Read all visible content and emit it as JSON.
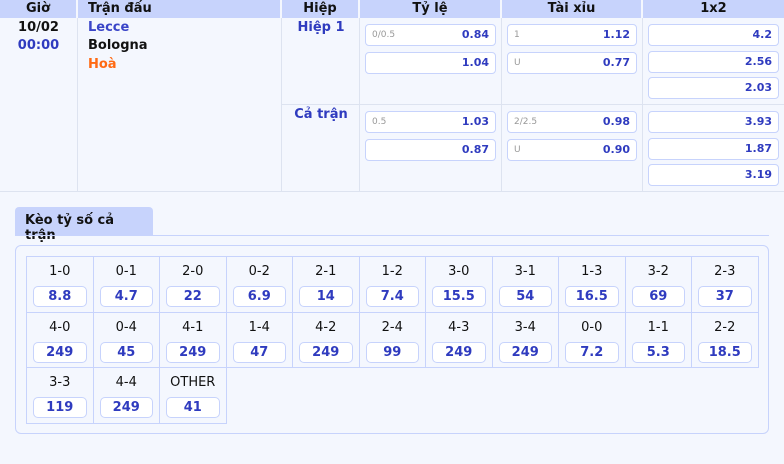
{
  "header": [
    "Giờ",
    "Trận đấu",
    "Hiệp",
    "Tỷ lệ",
    "Tài xỉu",
    "1x2"
  ],
  "match": {
    "date": "10/02",
    "time": "00:00",
    "home": "Lecce",
    "away": "Bologna",
    "draw": "Hoà"
  },
  "periods": [
    {
      "name": "Hiệp 1",
      "handicap": [
        {
          "line": "0/0.5",
          "odd": "0.84"
        },
        {
          "line": "",
          "odd": "1.04"
        }
      ],
      "overunder": [
        {
          "line": "1",
          "odd": "1.12"
        },
        {
          "line": "U",
          "odd": "0.77"
        }
      ],
      "x12": [
        "4.2",
        "2.56",
        "2.03"
      ]
    },
    {
      "name": "Cả trận",
      "handicap": [
        {
          "line": "0.5",
          "odd": "1.03"
        },
        {
          "line": "",
          "odd": "0.87"
        }
      ],
      "overunder": [
        {
          "line": "2/2.5",
          "odd": "0.98"
        },
        {
          "line": "U",
          "odd": "0.90"
        }
      ],
      "x12": [
        "3.93",
        "1.87",
        "3.19"
      ]
    }
  ],
  "scores": {
    "tab": "Kèo tỷ số cả trận",
    "items": [
      {
        "s": "1-0",
        "o": "8.8"
      },
      {
        "s": "0-1",
        "o": "4.7"
      },
      {
        "s": "2-0",
        "o": "22"
      },
      {
        "s": "0-2",
        "o": "6.9"
      },
      {
        "s": "2-1",
        "o": "14"
      },
      {
        "s": "1-2",
        "o": "7.4"
      },
      {
        "s": "3-0",
        "o": "15.5"
      },
      {
        "s": "3-1",
        "o": "54"
      },
      {
        "s": "1-3",
        "o": "16.5"
      },
      {
        "s": "3-2",
        "o": "69"
      },
      {
        "s": "2-3",
        "o": "37"
      },
      {
        "s": "4-0",
        "o": "249"
      },
      {
        "s": "0-4",
        "o": "45"
      },
      {
        "s": "4-1",
        "o": "249"
      },
      {
        "s": "1-4",
        "o": "47"
      },
      {
        "s": "4-2",
        "o": "249"
      },
      {
        "s": "2-4",
        "o": "99"
      },
      {
        "s": "4-3",
        "o": "249"
      },
      {
        "s": "3-4",
        "o": "249"
      },
      {
        "s": "0-0",
        "o": "7.2"
      },
      {
        "s": "1-1",
        "o": "5.3"
      },
      {
        "s": "2-2",
        "o": "18.5"
      },
      {
        "s": "3-3",
        "o": "119"
      },
      {
        "s": "4-4",
        "o": "249"
      },
      {
        "s": "OTHER",
        "o": "41"
      }
    ]
  },
  "colors": {
    "accent": "#2f3bbf",
    "header": "#c7d3fc",
    "draw": "#ff6a13"
  }
}
